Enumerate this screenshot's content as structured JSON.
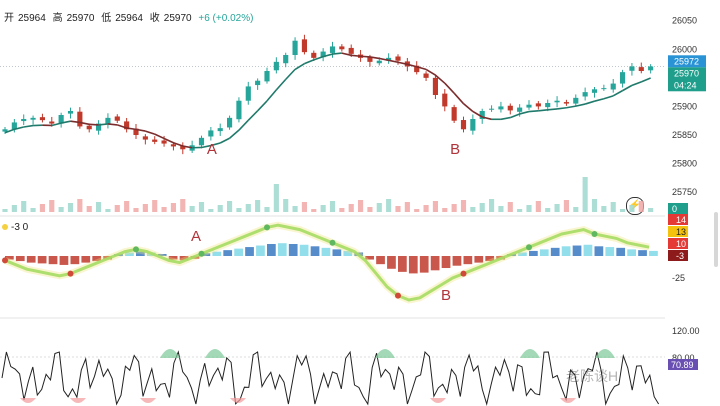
{
  "ohlc": {
    "open_label": "开",
    "open": "25964",
    "high_label": "高",
    "high": "25970",
    "low_label": "低",
    "low": "25964",
    "close_label": "收",
    "close": "25970",
    "change": "+6 (+0.02%)"
  },
  "indicator_label": "-3 0",
  "watermark": "老陈谈H",
  "colors": {
    "up": "#26a69a",
    "down": "#c0392b",
    "ma": "#7b2c2c",
    "ma_up": "#1f7a6b",
    "bright_green": "#7ed957",
    "yellow": "#f2e27a",
    "cyan": "#7fd8e8",
    "blue": "#3a78c2",
    "red_label": "#e53935",
    "dark_red": "#8e1b1b",
    "orange_label": "#f4c20d",
    "purple": "#6a4fb3",
    "teal_label": "#1f9e8c"
  },
  "chart_data": [
    {
      "type": "candlestick",
      "annotations": [
        {
          "text": "A",
          "x_index": 22
        },
        {
          "text": "B",
          "x_index": 48
        }
      ],
      "price_axis": {
        "ticks": [
          "26050",
          "26000",
          "25950",
          "25900",
          "25850",
          "25800",
          "25750"
        ],
        "ylim": [
          25745,
          26060
        ]
      },
      "price_labels": {
        "high": "25972",
        "last": "25970",
        "timer": "04:24"
      },
      "candles_close_approx": [
        25860,
        25872,
        25878,
        25880,
        25876,
        25870,
        25885,
        25892,
        25865,
        25860,
        25870,
        25880,
        25875,
        25860,
        25850,
        25842,
        25838,
        25835,
        25830,
        25825,
        25832,
        25845,
        25858,
        25862,
        25880,
        25910,
        25935,
        25945,
        25962,
        25978,
        25990,
        26015,
        25995,
        25985,
        25996,
        26005,
        26000,
        25992,
        25985,
        25978,
        25980,
        25985,
        25980,
        25970,
        25960,
        25950,
        25920,
        25900,
        25875,
        25860,
        25878,
        25892,
        25896,
        25900,
        25893,
        25898,
        25903,
        25900,
        25906,
        25910,
        25905,
        25915,
        25925,
        25930,
        25932,
        25940,
        25960,
        25970,
        25962,
        25970
      ],
      "volume_axis": {
        "ticks": [
          "0"
        ]
      }
    },
    {
      "type": "bar",
      "name_label": "-3 0",
      "axis_ticks": [
        "0",
        "-25"
      ],
      "value_labels": [
        "14",
        "13",
        "10",
        "-3"
      ],
      "annotations": [
        {
          "text": "A"
        },
        {
          "text": "B"
        }
      ],
      "wave_values": [
        -2,
        -4,
        -6,
        -7,
        -8,
        -9,
        -8,
        -6,
        -4,
        -2,
        0,
        2,
        3,
        2,
        0,
        -2,
        -3,
        -1,
        1,
        3,
        5,
        7,
        9,
        11,
        13,
        14,
        13,
        12,
        10,
        8,
        6,
        4,
        2,
        -2,
        -8,
        -14,
        -18,
        -20,
        -19,
        -16,
        -13,
        -10,
        -8,
        -6,
        -4,
        -2,
        0,
        2,
        4,
        6,
        8,
        10,
        11,
        12,
        10,
        9,
        8,
        6,
        5,
        4
      ]
    },
    {
      "type": "line",
      "axis_ticks": [
        "120.00",
        "80.00"
      ],
      "last_value": "70.89"
    }
  ]
}
